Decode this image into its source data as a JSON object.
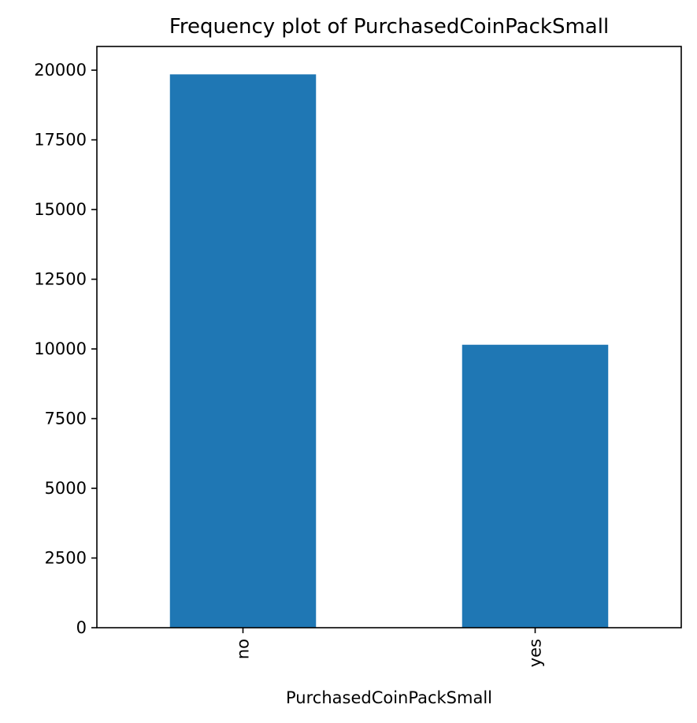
{
  "chart_data": {
    "type": "bar",
    "title": "Frequency plot of PurchasedCoinPackSmall",
    "xlabel": "PurchasedCoinPackSmall",
    "ylabel": "",
    "categories": [
      "no",
      "yes"
    ],
    "values": [
      19850,
      10150
    ],
    "ylim": [
      0,
      20850
    ],
    "yticks": [
      0,
      2500,
      5000,
      7500,
      10000,
      12500,
      15000,
      17500,
      20000
    ],
    "ytick_labels": [
      "0",
      "2500",
      "5000",
      "7500",
      "10000",
      "12500",
      "15000",
      "17500",
      "20000"
    ],
    "bar_color": "#1f77b4",
    "grid": false,
    "legend": "none"
  }
}
